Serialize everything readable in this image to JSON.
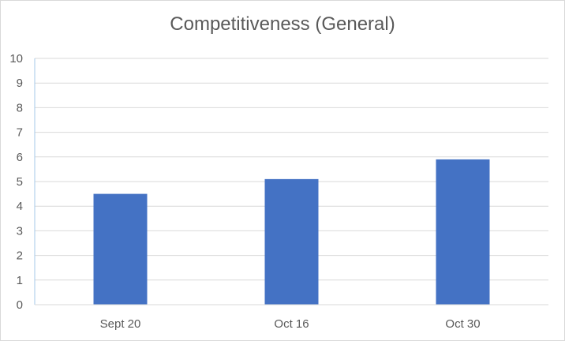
{
  "chart_data": {
    "type": "bar",
    "title": "Competitiveness (General)",
    "xlabel": "",
    "ylabel": "",
    "categories": [
      "Sept 20",
      "Oct 16",
      "Oct 30"
    ],
    "values": [
      4.5,
      5.1,
      5.9
    ],
    "ylim": [
      0,
      10
    ],
    "yticks": [
      0,
      1,
      2,
      3,
      4,
      5,
      6,
      7,
      8,
      9,
      10
    ],
    "grid": true,
    "bar_color": "#4472C4",
    "grid_color": "#d9d9d9"
  }
}
